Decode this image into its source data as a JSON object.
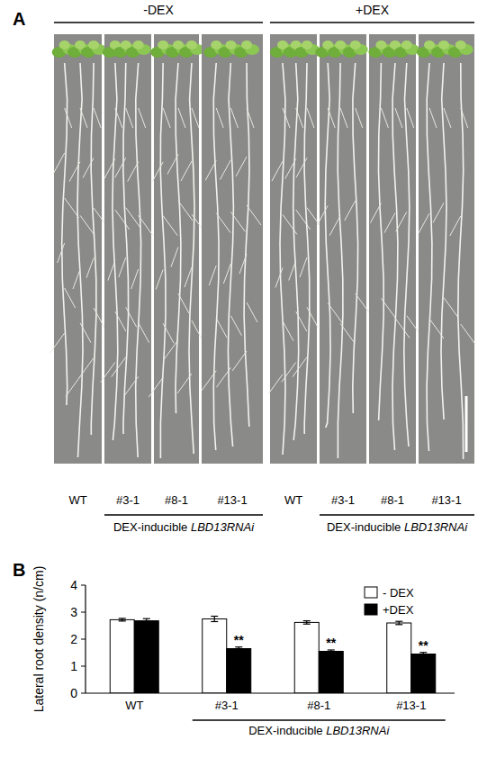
{
  "panel_labels": [
    "A",
    "B"
  ],
  "panel_a": {
    "treatments": [
      "-DEX",
      "+DEX"
    ],
    "lines": [
      "WT",
      "#3-1",
      "#8-1",
      "#13-1"
    ],
    "group_label": "DEX-inducible LBD13RNAi"
  },
  "chart_data": {
    "type": "bar",
    "categories": [
      "WT",
      "#3-1",
      "#8-1",
      "#13-1"
    ],
    "x_group_label": "DEX-inducible LBD13RNAi",
    "ylabel": "Lateral root density (n/cm)",
    "ylim": [
      0,
      4
    ],
    "yticks": [
      0,
      1,
      2,
      3,
      4
    ],
    "legend": "top-right",
    "series": [
      {
        "name": "- DEX",
        "color": "#ffffff",
        "values": [
          2.72,
          2.75,
          2.62,
          2.6
        ],
        "errors": [
          0.05,
          0.1,
          0.06,
          0.06
        ]
      },
      {
        "name": "+DEX",
        "color": "#000000",
        "values": [
          2.68,
          1.65,
          1.55,
          1.45
        ],
        "errors": [
          0.08,
          0.06,
          0.05,
          0.06
        ],
        "significance": [
          null,
          "**",
          "**",
          "**"
        ]
      }
    ]
  }
}
